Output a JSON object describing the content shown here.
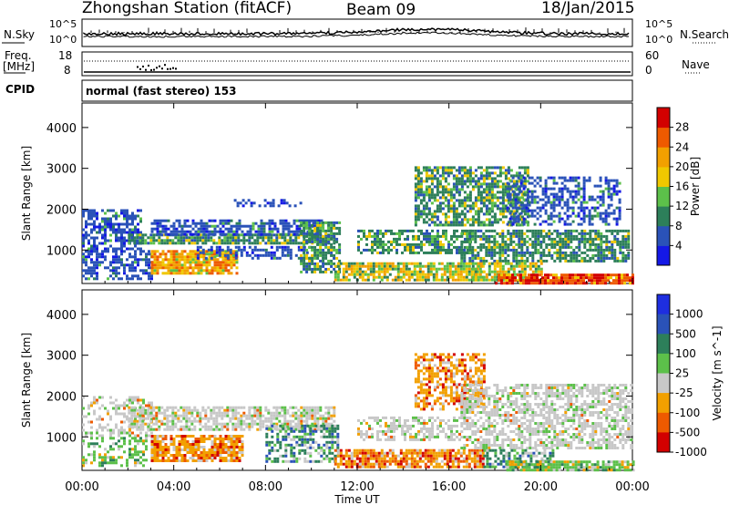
{
  "header": {
    "station": "Zhongshan Station (fitACF)",
    "beam": "Beam 09",
    "date": "18/Jan/2015"
  },
  "panels": {
    "nsky_label": "N.Sky",
    "nsearch_label": "N.Search",
    "freq_label_line1": "Freq.",
    "freq_label_line2": "[MHz]",
    "nave_label": "Nave",
    "cpid_label": "CPID",
    "cpid_value": "normal (fast stereo) 153",
    "noise_ticks_left": [
      "10^5",
      "10^0"
    ],
    "noise_ticks_right": [
      "10^5",
      "10^0"
    ],
    "freq_ticks": [
      "18",
      "8"
    ],
    "nave_ticks": [
      "60",
      "0"
    ]
  },
  "chart_data": [
    {
      "type": "heatmap",
      "title": "",
      "xlabel": "Time UT",
      "ylabel": "Slant Range [km]",
      "xticks": [
        "00:00",
        "04:00",
        "08:00",
        "12:00",
        "16:00",
        "20:00",
        "00:00"
      ],
      "yticks": [
        "1000",
        "2000",
        "3000",
        "4000"
      ],
      "xlim_hours": [
        0,
        24
      ],
      "ylim_km": [
        180,
        4600
      ],
      "colorbar_label": "Power [dB]",
      "colorbar_ticks": [
        "4",
        "8",
        "12",
        "16",
        "20",
        "24",
        "28"
      ],
      "colorbar_range": [
        0,
        30
      ],
      "colors": [
        "#1418e6",
        "#2a52b8",
        "#2d7f5a",
        "#5cc04a",
        "#f0c800",
        "#f2a000",
        "#ee5a00",
        "#d20000"
      ],
      "blobs": [
        {
          "t": [
            0.0,
            2.6
          ],
          "r": [
            1000,
            2000
          ],
          "lvl": 1,
          "hot": 0.15,
          "d": 0.55
        },
        {
          "t": [
            0.0,
            3.0
          ],
          "r": [
            300,
            1000
          ],
          "lvl": 1,
          "hot": 0.1,
          "d": 0.6
        },
        {
          "t": [
            3.0,
            6.8
          ],
          "r": [
            450,
            1000
          ],
          "lvl": 4,
          "hot": 0.6,
          "d": 0.85
        },
        {
          "t": [
            2.0,
            11.0
          ],
          "r": [
            1150,
            1400
          ],
          "lvl": 2,
          "hot": 0.25,
          "d": 0.85
        },
        {
          "t": [
            3.0,
            10.5
          ],
          "r": [
            1400,
            1750
          ],
          "lvl": 1,
          "hot": 0.15,
          "d": 0.65
        },
        {
          "t": [
            5.0,
            10.0
          ],
          "r": [
            800,
            1100
          ],
          "lvl": 1,
          "hot": 0.1,
          "d": 0.5
        },
        {
          "t": [
            6.5,
            9.5
          ],
          "r": [
            2050,
            2250
          ],
          "lvl": 1,
          "hot": 0.05,
          "d": 0.4
        },
        {
          "t": [
            9.5,
            11.2
          ],
          "r": [
            450,
            1700
          ],
          "lvl": 2,
          "hot": 0.3,
          "d": 0.7
        },
        {
          "t": [
            11.0,
            17.5
          ],
          "r": [
            250,
            700
          ],
          "lvl": 3,
          "hot": 0.55,
          "d": 0.8
        },
        {
          "t": [
            12.0,
            17.0
          ],
          "r": [
            900,
            1500
          ],
          "lvl": 2,
          "hot": 0.25,
          "d": 0.6
        },
        {
          "t": [
            14.5,
            19.5
          ],
          "r": [
            1600,
            3050
          ],
          "lvl": 2,
          "hot": 0.3,
          "d": 0.7
        },
        {
          "t": [
            16.5,
            23.8
          ],
          "r": [
            700,
            1500
          ],
          "lvl": 2,
          "hot": 0.2,
          "d": 0.7
        },
        {
          "t": [
            17.0,
            20.0
          ],
          "r": [
            250,
            700
          ],
          "lvl": 3,
          "hot": 0.5,
          "d": 0.75
        },
        {
          "t": [
            18.0,
            24.0
          ],
          "r": [
            200,
            420
          ],
          "lvl": 5,
          "hot": 0.85,
          "d": 0.9
        },
        {
          "t": [
            18.5,
            23.5
          ],
          "r": [
            1600,
            2800
          ],
          "lvl": 1,
          "hot": 0.15,
          "d": 0.5
        }
      ]
    },
    {
      "type": "heatmap",
      "title": "",
      "xlabel": "Time UT",
      "ylabel": "Slant Range [km]",
      "xticks": [
        "00:00",
        "04:00",
        "08:00",
        "12:00",
        "16:00",
        "20:00",
        "00:00"
      ],
      "yticks": [
        "1000",
        "2000",
        "3000",
        "4000"
      ],
      "xlim_hours": [
        0,
        24
      ],
      "ylim_km": [
        180,
        4600
      ],
      "colorbar_label": "Velocity [m s^-1]",
      "colorbar_ticks": [
        "1000",
        "500",
        "100",
        "25",
        "-25",
        "-100",
        "-500",
        "-1000"
      ],
      "colorbar_range": [
        -1000,
        1000
      ],
      "colors": [
        "#1e2ee0",
        "#2a52b8",
        "#2d7f5a",
        "#5cc04a",
        "#c8c8c8",
        "#f2a000",
        "#ee5a00",
        "#d20000"
      ],
      "blobs": [
        {
          "t": [
            0.0,
            3.0
          ],
          "r": [
            1000,
            2000
          ],
          "lvl": 4,
          "hot": 0.1,
          "d": 0.45
        },
        {
          "t": [
            0.0,
            2.8
          ],
          "r": [
            300,
            1000
          ],
          "lvl": 3,
          "hot": 0.2,
          "d": 0.45
        },
        {
          "t": [
            3.0,
            7.0
          ],
          "r": [
            400,
            1050
          ],
          "lvl": 5,
          "hot": 0.3,
          "d": 0.8
        },
        {
          "t": [
            2.0,
            11.0
          ],
          "r": [
            1200,
            1750
          ],
          "lvl": 4,
          "hot": 0.1,
          "d": 0.7
        },
        {
          "t": [
            8.0,
            11.2
          ],
          "r": [
            400,
            1300
          ],
          "lvl": 2,
          "hot": 0.4,
          "d": 0.55
        },
        {
          "t": [
            11.0,
            17.5
          ],
          "r": [
            250,
            700
          ],
          "lvl": 5,
          "hot": 0.35,
          "d": 0.8
        },
        {
          "t": [
            14.5,
            17.5
          ],
          "r": [
            1700,
            3050
          ],
          "lvl": 5,
          "hot": 0.3,
          "d": 0.6
        },
        {
          "t": [
            12.0,
            16.5
          ],
          "r": [
            900,
            1500
          ],
          "lvl": 4,
          "hot": 0.1,
          "d": 0.5
        },
        {
          "t": [
            16.5,
            24.0
          ],
          "r": [
            700,
            2300
          ],
          "lvl": 4,
          "hot": 0.05,
          "d": 0.6
        },
        {
          "t": [
            17.5,
            20.5
          ],
          "r": [
            250,
            700
          ],
          "lvl": 2,
          "hot": 0.4,
          "d": 0.6
        },
        {
          "t": [
            18.5,
            24.0
          ],
          "r": [
            200,
            420
          ],
          "lvl": 3,
          "hot": 0.3,
          "d": 0.85
        }
      ]
    }
  ]
}
